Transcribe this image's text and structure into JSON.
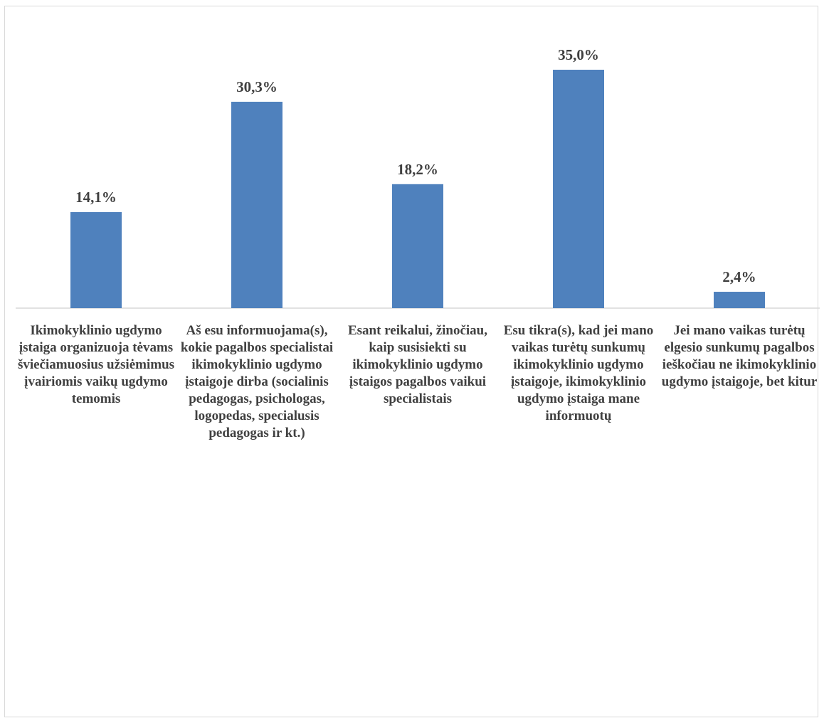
{
  "chart_data": {
    "type": "bar",
    "categories": [
      "Ikimokyklinio ugdymo įstaiga organizuoja tėvams šviečiamuosius užsiėmimus įvairiomis vaikų ugdymo temomis",
      "Aš esu informuojama(s), kokie pagalbos specialistai ikimokyklinio ugdymo įstaigoje dirba (socialinis pedagogas, psichologas, logopedas, specialusis pedagogas ir kt.)",
      "Esant reikalui, žinočiau, kaip susisiekti su ikimokyklinio ugdymo įstaigos pagalbos vaikui specialistais",
      "Esu tikra(s), kad jei mano vaikas turėtų sunkumų ikimokyklinio ugdymo įstaigoje, ikimokyklinio ugdymo įstaiga mane informuotų",
      "Jei mano vaikas turėtų elgesio sunkumų pagalbos ieškočiau ne ikimokyklinio ugdymo įstaigoje, bet kitur"
    ],
    "values": [
      14.1,
      30.3,
      18.2,
      35.0,
      2.4
    ],
    "value_labels": [
      "14,1%",
      "30,3%",
      "18,2%",
      "35,0%",
      "2,4%"
    ],
    "title": "",
    "xlabel": "",
    "ylabel": "",
    "ylim": [
      0,
      40
    ],
    "grid": false,
    "legend": "none",
    "bar_color": "#4f81bd"
  }
}
